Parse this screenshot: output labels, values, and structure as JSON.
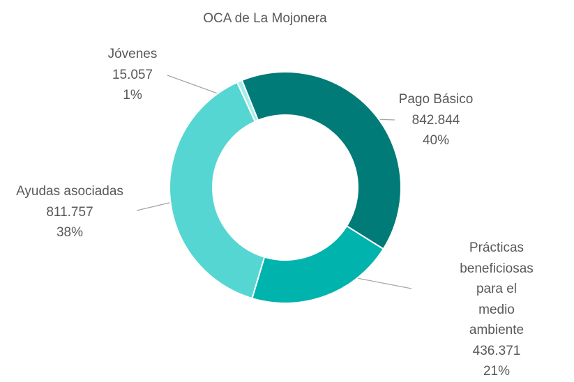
{
  "chart_data": {
    "type": "donut",
    "title": "OCA de La Mojonera",
    "categories": [
      "Pago Básico",
      "Prácticas beneficiosas\npara el medio\nambiente",
      "Ayudas asociadas",
      "Jóvenes"
    ],
    "values": [
      842844,
      436371,
      811757,
      15057
    ],
    "value_labels": [
      "842.844",
      "436.371",
      "811.757",
      "15.057"
    ],
    "percent_labels": [
      "40%",
      "21%",
      "38%",
      "1%"
    ],
    "colors": [
      "#007b78",
      "#00b3ad",
      "#56d6d2",
      "#a6ede9"
    ]
  }
}
